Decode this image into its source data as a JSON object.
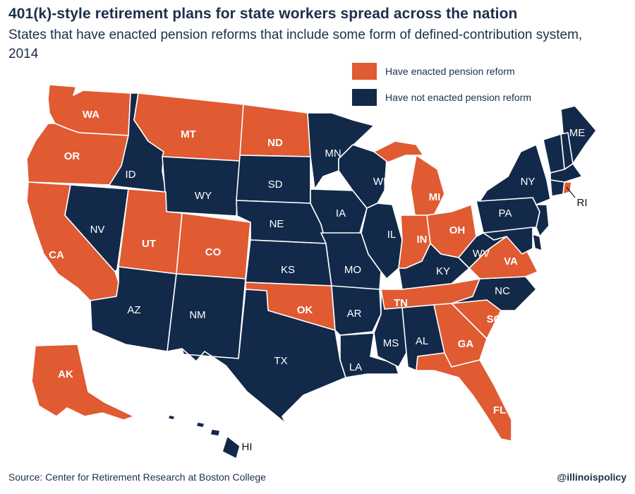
{
  "header": {
    "title": "401(k)-style retirement plans for state workers spread across the nation",
    "subtitle": "States that have enacted pension reforms that include some form of defined-contribution system, 2014"
  },
  "legend": {
    "enacted_label": "Have enacted pension reform",
    "not_enacted_label": "Have not enacted pension reform"
  },
  "colors": {
    "enacted": "#e05a32",
    "not_enacted": "#12294a",
    "label_on_dark": "#ffffff",
    "label_on_light": "#111111",
    "border": "#ffffff"
  },
  "states": {
    "WA": {
      "label": "WA",
      "enacted": true
    },
    "OR": {
      "label": "OR",
      "enacted": true
    },
    "CA": {
      "label": "CA",
      "enacted": true
    },
    "ID": {
      "label": "ID",
      "enacted": false
    },
    "NV": {
      "label": "NV",
      "enacted": false
    },
    "MT": {
      "label": "MT",
      "enacted": true
    },
    "WY": {
      "label": "WY",
      "enacted": false
    },
    "UT": {
      "label": "UT",
      "enacted": true
    },
    "AZ": {
      "label": "AZ",
      "enacted": false
    },
    "CO": {
      "label": "CO",
      "enacted": true
    },
    "NM": {
      "label": "NM",
      "enacted": false
    },
    "ND": {
      "label": "ND",
      "enacted": true
    },
    "SD": {
      "label": "SD",
      "enacted": false
    },
    "NE": {
      "label": "NE",
      "enacted": false
    },
    "KS": {
      "label": "KS",
      "enacted": false
    },
    "OK": {
      "label": "OK",
      "enacted": true
    },
    "TX": {
      "label": "TX",
      "enacted": false
    },
    "MN": {
      "label": "MN",
      "enacted": false
    },
    "IA": {
      "label": "IA",
      "enacted": false
    },
    "MO": {
      "label": "MO",
      "enacted": false
    },
    "AR": {
      "label": "AR",
      "enacted": false
    },
    "LA": {
      "label": "LA",
      "enacted": false
    },
    "WI": {
      "label": "WI",
      "enacted": false
    },
    "IL": {
      "label": "IL",
      "enacted": false
    },
    "MS": {
      "label": "MS",
      "enacted": false
    },
    "MI": {
      "label": "MI",
      "enacted": true
    },
    "IN": {
      "label": "IN",
      "enacted": true
    },
    "OH": {
      "label": "OH",
      "enacted": true
    },
    "KY": {
      "label": "KY",
      "enacted": false
    },
    "TN": {
      "label": "TN",
      "enacted": true
    },
    "AL": {
      "label": "AL",
      "enacted": false
    },
    "GA": {
      "label": "GA",
      "enacted": true
    },
    "FL": {
      "label": "FL",
      "enacted": true
    },
    "SC": {
      "label": "SC",
      "enacted": true
    },
    "NC": {
      "label": "NC",
      "enacted": false
    },
    "VA": {
      "label": "VA",
      "enacted": true
    },
    "WV": {
      "label": "WV",
      "enacted": false
    },
    "PA": {
      "label": "PA",
      "enacted": false
    },
    "NY": {
      "label": "NY",
      "enacted": false
    },
    "ME": {
      "label": "ME",
      "enacted": false
    },
    "NH": {
      "label": "",
      "enacted": false
    },
    "VT": {
      "label": "",
      "enacted": false
    },
    "MA": {
      "label": "",
      "enacted": false
    },
    "CT": {
      "label": "",
      "enacted": false
    },
    "RI": {
      "label": "RI",
      "enacted": true
    },
    "NJ": {
      "label": "",
      "enacted": false
    },
    "DE": {
      "label": "",
      "enacted": false
    },
    "MD": {
      "label": "",
      "enacted": false
    },
    "AK": {
      "label": "AK",
      "enacted": true
    },
    "HI": {
      "label": "HI",
      "enacted": false
    }
  },
  "footer": {
    "source": "Source: Center for Retirement Research at Boston College",
    "handle": "@illinoispolicy"
  }
}
